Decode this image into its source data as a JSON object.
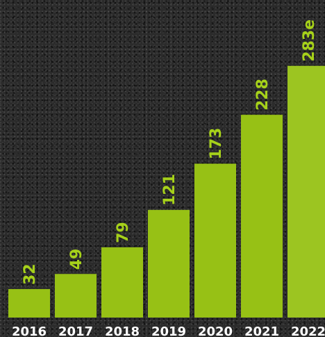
{
  "chart_data": {
    "type": "bar",
    "categories": [
      "2016",
      "2017",
      "2018",
      "2019",
      "2020",
      "2021",
      "2022"
    ],
    "values": [
      32,
      49,
      79,
      121,
      173,
      228,
      283
    ],
    "value_labels": [
      "32",
      "49",
      "79",
      "121",
      "173",
      "228",
      "283e"
    ],
    "estimated": [
      false,
      false,
      false,
      false,
      false,
      false,
      true
    ],
    "ylim": [
      0,
      300
    ],
    "grid": false,
    "legend": "none",
    "colors": {
      "bar": "#97c115",
      "value_label": "#a6d11a",
      "tick_label": "#ffffff",
      "background": "#2b2b2b"
    }
  }
}
